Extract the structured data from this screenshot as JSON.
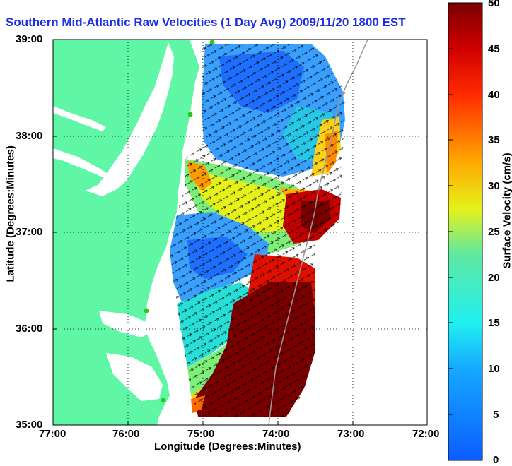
{
  "title": "Southern Mid-Atlantic Raw Velocities (1 Day Avg) 2009/11/20 1800 EST",
  "xaxis": {
    "label": "Longitude (Degrees:Minutes)",
    "ticks": [
      "77:00",
      "76:00",
      "75:00",
      "74:00",
      "73:00",
      "72:00"
    ]
  },
  "yaxis": {
    "label": "Latitude (Degrees:Minutes)",
    "ticks": [
      "39:00",
      "38:00",
      "37:00",
      "36:00",
      "35:00"
    ]
  },
  "colorbar": {
    "label": "Surface Velocity (cm/s)",
    "ticks": [
      "50",
      "45",
      "40",
      "35",
      "30",
      "25",
      "20",
      "15",
      "10",
      "5",
      "0"
    ],
    "min": 0,
    "max": 50,
    "colormap": "jet"
  },
  "colors": {
    "land": "#5ff7a6",
    "title_text": "#1a2ee6",
    "station_marker": "#22cc22",
    "max_velocity": "#7a0000",
    "min_velocity": "#1e6fff"
  },
  "map": {
    "lon_range": [
      "77:00",
      "72:00"
    ],
    "lat_range": [
      "35:00",
      "39:00"
    ],
    "grid": "dotted"
  }
}
